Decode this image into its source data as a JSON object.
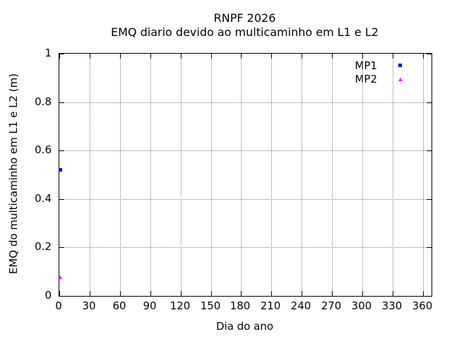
{
  "chart_data": {
    "type": "scatter",
    "title": "RNPF 2026",
    "subtitle": "EMQ diario devido ao multicaminho em L1 e L2",
    "xlabel": "Dia do ano",
    "ylabel": "EMQ do multicaminho em L1 e L2 (m)",
    "xlim": [
      0,
      368.5
    ],
    "ylim": [
      0,
      1
    ],
    "xticks": {
      "values": [
        0,
        30,
        60,
        90,
        120,
        150,
        180,
        210,
        240,
        270,
        300,
        330,
        360
      ],
      "labels": [
        "0",
        "30",
        "60",
        "90",
        "120",
        "150",
        "180",
        "210",
        "240",
        "270",
        "300",
        "330",
        "360"
      ]
    },
    "yticks": {
      "values": [
        0,
        0.2,
        0.4,
        0.6,
        0.8,
        1
      ],
      "labels": [
        "0",
        "0.2",
        "0.4",
        "0.6",
        "0.8",
        "1"
      ]
    },
    "grid": {
      "show": true,
      "style": "dotted",
      "color": "#808080"
    },
    "frame_color": "#000000",
    "background_color": "#ffffff",
    "legend": {
      "position": "top-right-inside"
    },
    "series": [
      {
        "name": "MP1",
        "color": "#0000ff",
        "marker": "square",
        "points": [
          {
            "x": 1,
            "y": 0.52
          }
        ]
      },
      {
        "name": "MP2",
        "color": "#ff00ff",
        "marker": "triangle",
        "points": [
          {
            "x": 1,
            "y": 0.075
          }
        ]
      }
    ]
  }
}
